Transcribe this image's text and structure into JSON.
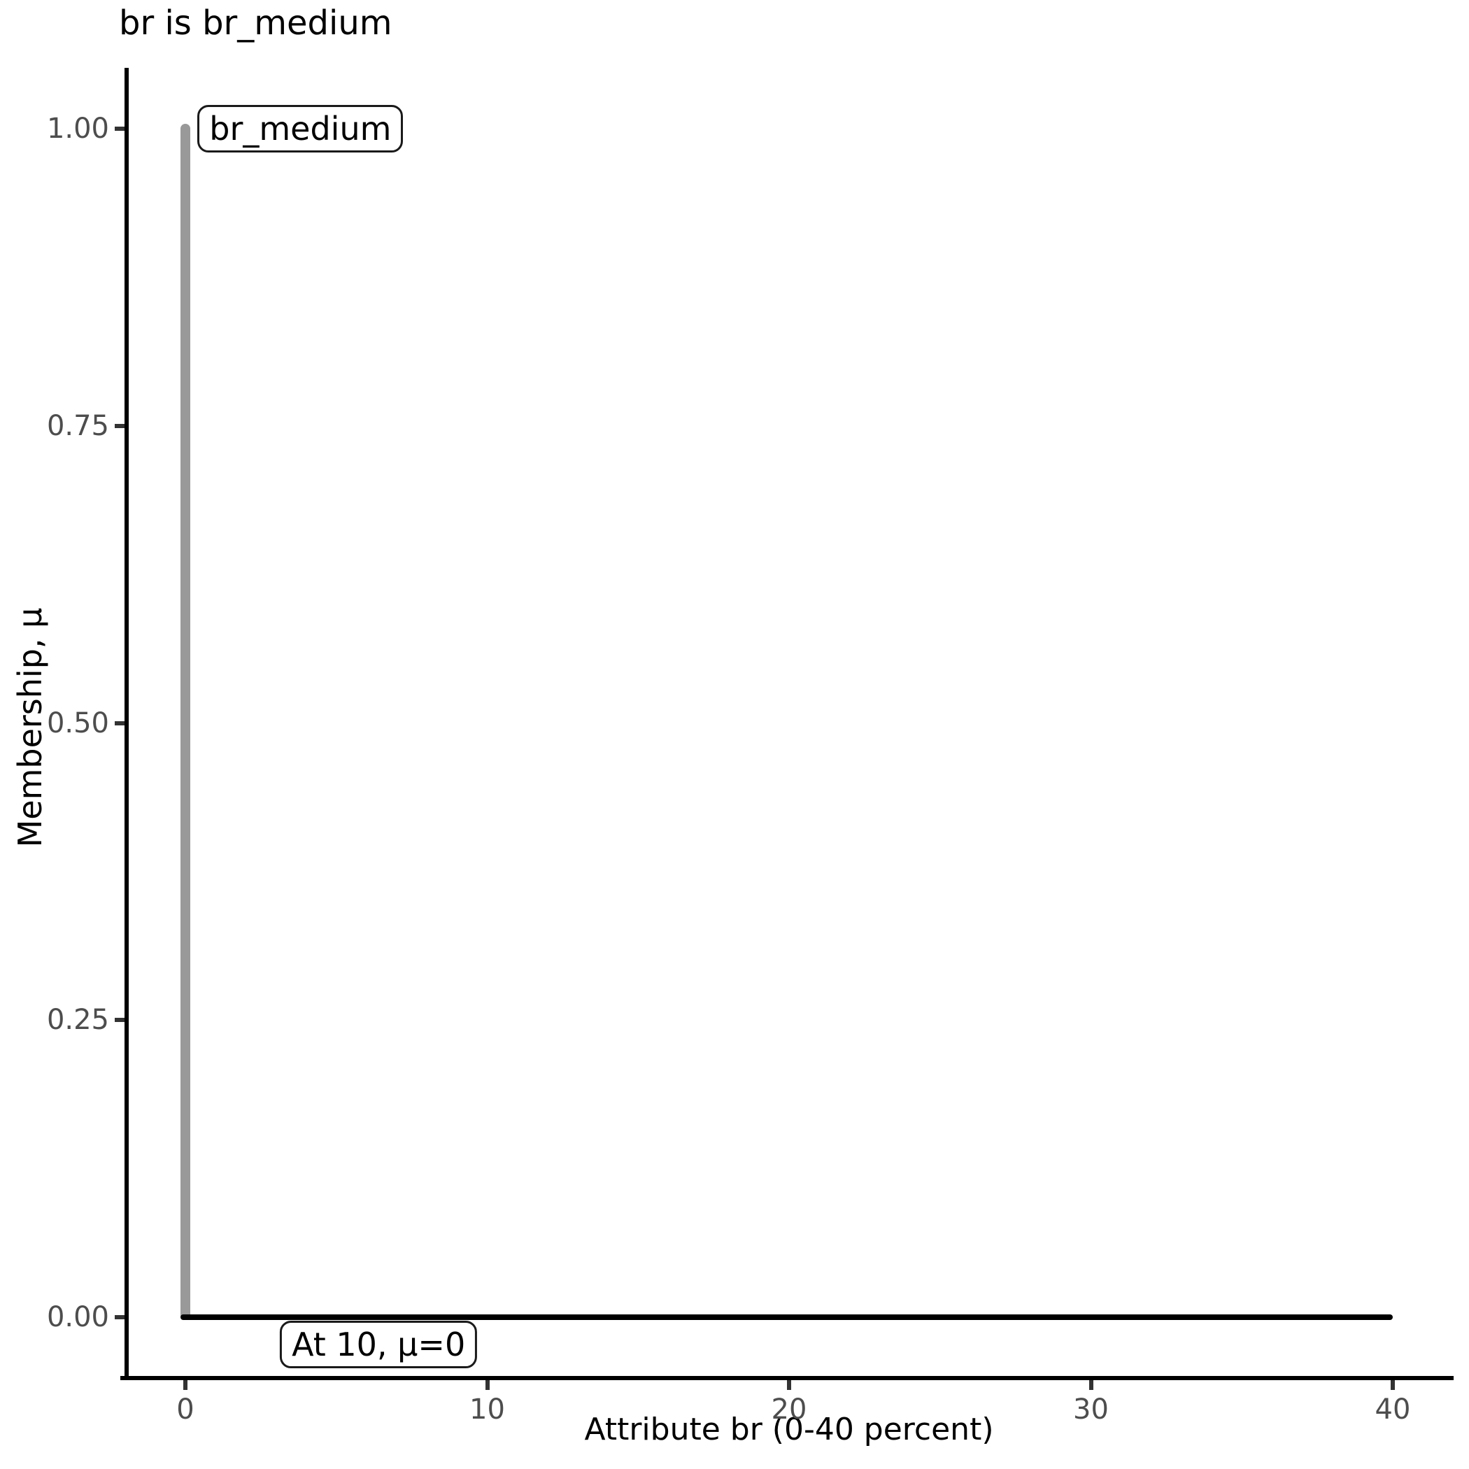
{
  "title": "br is br_medium",
  "colors": {
    "background": "#ffffff",
    "axis_line": "#000000",
    "tick_mark": "#333333",
    "tick_label": "#4d4d4d",
    "text": "#000000",
    "spike": "#999999",
    "baseline": "#000000",
    "annotation_bg": "#ffffff",
    "annotation_border": "#1a1a1a"
  },
  "chart_data": {
    "type": "line",
    "title": "br is br_medium",
    "xlabel": "Attribute br (0-40 percent)",
    "ylabel": "Membership, μ",
    "xlim": [
      0,
      40
    ],
    "ylim": [
      0,
      1
    ],
    "grid": false,
    "legend": "none",
    "x_ticks": [
      {
        "value": 0,
        "label": "0"
      },
      {
        "value": 10,
        "label": "10"
      },
      {
        "value": 20,
        "label": "20"
      },
      {
        "value": 30,
        "label": "30"
      },
      {
        "value": 40,
        "label": "40"
      }
    ],
    "y_ticks": [
      {
        "value": 0.0,
        "label": "0.00"
      },
      {
        "value": 0.25,
        "label": "0.25"
      },
      {
        "value": 0.5,
        "label": "0.50"
      },
      {
        "value": 0.75,
        "label": "0.75"
      },
      {
        "value": 1.0,
        "label": "1.00"
      }
    ],
    "series": [
      {
        "name": "br_medium-membership-spike",
        "shape": "vertical-segment",
        "x": 0,
        "y_from": 0,
        "y_to": 1,
        "color": "#999999"
      },
      {
        "name": "mu-zero-baseline",
        "shape": "horizontal-segment",
        "y": 0,
        "x_from": 0,
        "x_to": 40,
        "color": "#000000"
      }
    ],
    "annotations": [
      {
        "id": "label-br-medium",
        "text": "br_medium",
        "x": 0.4,
        "y": 1.0,
        "anchor": "left"
      },
      {
        "id": "label-at-10",
        "text": "At 10, μ=0",
        "x": 6.4,
        "y": -0.023,
        "anchor": "center"
      }
    ]
  }
}
